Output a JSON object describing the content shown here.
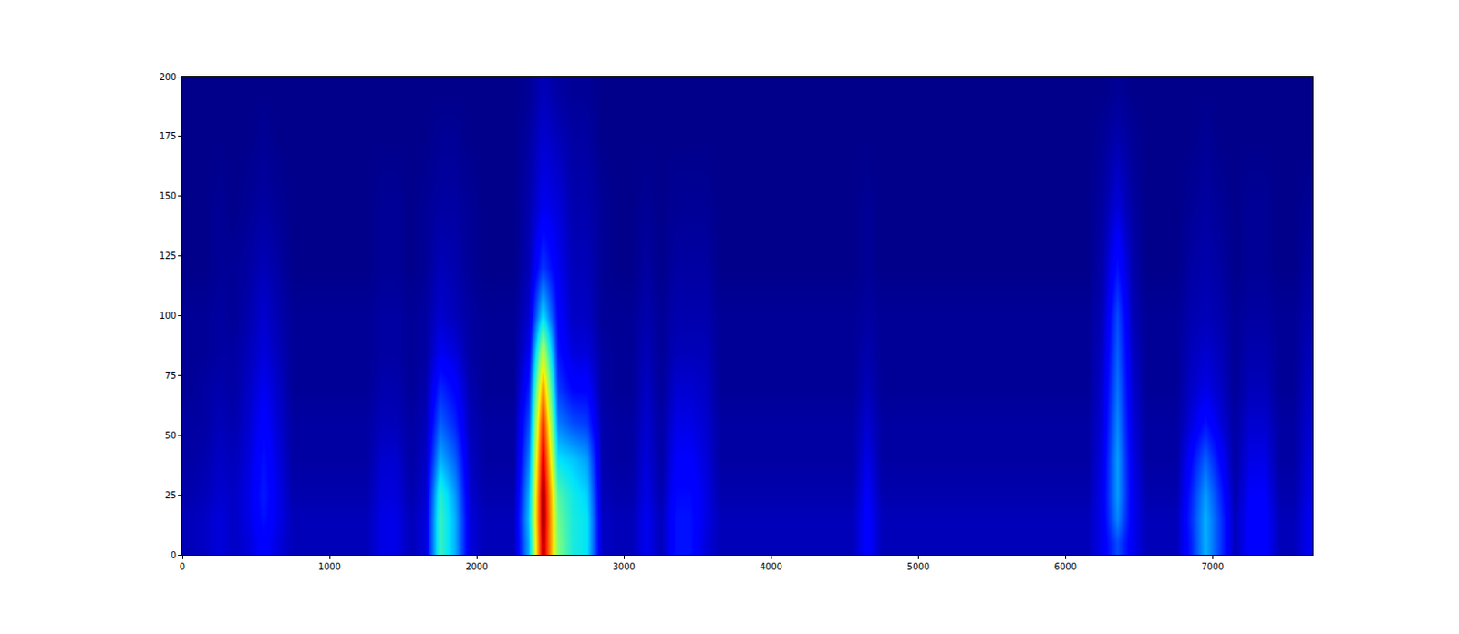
{
  "chart_data": {
    "type": "heatmap",
    "x": [
      50,
      150,
      250,
      350,
      450,
      550,
      650,
      750,
      850,
      950,
      1050,
      1150,
      1250,
      1350,
      1450,
      1550,
      1650,
      1750,
      1850,
      1950,
      2050,
      2150,
      2250,
      2350,
      2450,
      2550,
      2650,
      2750,
      2850,
      2950,
      3050,
      3150,
      3250,
      3350,
      3450,
      3550,
      3650,
      3750,
      3850,
      3950,
      4050,
      4150,
      4250,
      4350,
      4450,
      4550,
      4650,
      4750,
      4850,
      4950,
      5050,
      5150,
      5250,
      5350,
      5450,
      5550,
      5650,
      5750,
      5850,
      5950,
      6050,
      6150,
      6250,
      6350,
      6450,
      6550,
      6650,
      6750,
      6850,
      6950,
      7050,
      7150,
      7250,
      7350,
      7450,
      7550,
      7650
    ],
    "y": [
      5,
      15,
      25,
      40,
      55,
      70,
      85,
      100,
      120,
      145,
      175,
      195
    ],
    "z": [
      [
        0.05,
        0.05,
        0.04,
        0.03,
        0.03,
        0.02,
        0.02,
        0.02,
        0.01,
        0.01,
        0.01,
        0.01
      ],
      [
        0.06,
        0.06,
        0.05,
        0.04,
        0.03,
        0.03,
        0.02,
        0.02,
        0.01,
        0.01,
        0.01,
        0.01
      ],
      [
        0.08,
        0.08,
        0.07,
        0.06,
        0.05,
        0.04,
        0.03,
        0.03,
        0.02,
        0.02,
        0.01,
        0.01
      ],
      [
        0.06,
        0.06,
        0.06,
        0.05,
        0.04,
        0.03,
        0.03,
        0.02,
        0.02,
        0.01,
        0.01,
        0.01
      ],
      [
        0.08,
        0.09,
        0.09,
        0.08,
        0.07,
        0.06,
        0.05,
        0.04,
        0.03,
        0.02,
        0.01,
        0.01
      ],
      [
        0.12,
        0.14,
        0.15,
        0.14,
        0.12,
        0.1,
        0.08,
        0.07,
        0.05,
        0.03,
        0.02,
        0.01
      ],
      [
        0.08,
        0.09,
        0.09,
        0.08,
        0.07,
        0.06,
        0.05,
        0.04,
        0.03,
        0.02,
        0.01,
        0.01
      ],
      [
        0.05,
        0.05,
        0.04,
        0.03,
        0.03,
        0.02,
        0.02,
        0.02,
        0.01,
        0.01,
        0.01,
        0.01
      ],
      [
        0.05,
        0.05,
        0.04,
        0.03,
        0.03,
        0.02,
        0.02,
        0.02,
        0.01,
        0.01,
        0.01,
        0.01
      ],
      [
        0.05,
        0.05,
        0.04,
        0.03,
        0.03,
        0.02,
        0.02,
        0.02,
        0.01,
        0.01,
        0.01,
        0.01
      ],
      [
        0.05,
        0.05,
        0.04,
        0.03,
        0.03,
        0.02,
        0.02,
        0.02,
        0.01,
        0.01,
        0.01,
        0.01
      ],
      [
        0.05,
        0.05,
        0.04,
        0.03,
        0.03,
        0.02,
        0.02,
        0.02,
        0.01,
        0.01,
        0.01,
        0.01
      ],
      [
        0.05,
        0.05,
        0.04,
        0.03,
        0.03,
        0.02,
        0.02,
        0.02,
        0.01,
        0.01,
        0.01,
        0.01
      ],
      [
        0.09,
        0.09,
        0.08,
        0.07,
        0.05,
        0.04,
        0.03,
        0.03,
        0.02,
        0.02,
        0.01,
        0.01
      ],
      [
        0.09,
        0.09,
        0.08,
        0.07,
        0.05,
        0.04,
        0.03,
        0.03,
        0.02,
        0.02,
        0.01,
        0.01
      ],
      [
        0.05,
        0.05,
        0.04,
        0.03,
        0.03,
        0.02,
        0.02,
        0.02,
        0.01,
        0.01,
        0.01,
        0.01
      ],
      [
        0.08,
        0.08,
        0.07,
        0.06,
        0.05,
        0.04,
        0.03,
        0.03,
        0.02,
        0.02,
        0.01,
        0.01
      ],
      [
        0.42,
        0.42,
        0.4,
        0.3,
        0.22,
        0.16,
        0.1,
        0.07,
        0.05,
        0.03,
        0.02,
        0.01
      ],
      [
        0.3,
        0.3,
        0.28,
        0.22,
        0.16,
        0.12,
        0.08,
        0.05,
        0.04,
        0.03,
        0.02,
        0.01
      ],
      [
        0.08,
        0.08,
        0.07,
        0.06,
        0.05,
        0.04,
        0.03,
        0.03,
        0.02,
        0.02,
        0.01,
        0.01
      ],
      [
        0.05,
        0.05,
        0.04,
        0.03,
        0.03,
        0.02,
        0.02,
        0.02,
        0.01,
        0.01,
        0.01,
        0.01
      ],
      [
        0.05,
        0.05,
        0.04,
        0.03,
        0.03,
        0.02,
        0.02,
        0.02,
        0.01,
        0.01,
        0.01,
        0.01
      ],
      [
        0.05,
        0.05,
        0.04,
        0.03,
        0.03,
        0.02,
        0.02,
        0.02,
        0.01,
        0.01,
        0.01,
        0.01
      ],
      [
        0.3,
        0.32,
        0.3,
        0.25,
        0.2,
        0.15,
        0.1,
        0.07,
        0.05,
        0.04,
        0.03,
        0.02
      ],
      [
        0.98,
        1.0,
        1.0,
        0.95,
        0.88,
        0.75,
        0.58,
        0.35,
        0.18,
        0.1,
        0.07,
        0.05
      ],
      [
        0.5,
        0.48,
        0.45,
        0.35,
        0.25,
        0.18,
        0.14,
        0.12,
        0.1,
        0.08,
        0.05,
        0.03
      ],
      [
        0.38,
        0.38,
        0.37,
        0.32,
        0.2,
        0.12,
        0.08,
        0.06,
        0.05,
        0.04,
        0.03,
        0.02
      ],
      [
        0.35,
        0.35,
        0.33,
        0.28,
        0.18,
        0.12,
        0.08,
        0.06,
        0.05,
        0.04,
        0.03,
        0.02
      ],
      [
        0.06,
        0.06,
        0.05,
        0.04,
        0.04,
        0.03,
        0.03,
        0.02,
        0.02,
        0.02,
        0.01,
        0.01
      ],
      [
        0.05,
        0.05,
        0.04,
        0.03,
        0.03,
        0.02,
        0.02,
        0.02,
        0.01,
        0.01,
        0.01,
        0.01
      ],
      [
        0.05,
        0.05,
        0.04,
        0.03,
        0.03,
        0.02,
        0.02,
        0.02,
        0.01,
        0.01,
        0.01,
        0.01
      ],
      [
        0.1,
        0.1,
        0.09,
        0.08,
        0.07,
        0.06,
        0.05,
        0.04,
        0.03,
        0.02,
        0.01,
        0.01
      ],
      [
        0.05,
        0.05,
        0.04,
        0.03,
        0.03,
        0.02,
        0.02,
        0.02,
        0.01,
        0.01,
        0.01,
        0.01
      ],
      [
        0.14,
        0.14,
        0.13,
        0.11,
        0.09,
        0.07,
        0.05,
        0.04,
        0.03,
        0.02,
        0.01,
        0.01
      ],
      [
        0.14,
        0.14,
        0.13,
        0.11,
        0.09,
        0.07,
        0.05,
        0.04,
        0.03,
        0.02,
        0.01,
        0.01
      ],
      [
        0.08,
        0.09,
        0.09,
        0.08,
        0.07,
        0.06,
        0.05,
        0.04,
        0.03,
        0.02,
        0.01,
        0.01
      ],
      [
        0.05,
        0.05,
        0.04,
        0.03,
        0.03,
        0.02,
        0.02,
        0.02,
        0.01,
        0.01,
        0.01,
        0.01
      ],
      [
        0.05,
        0.05,
        0.04,
        0.03,
        0.03,
        0.02,
        0.02,
        0.02,
        0.01,
        0.01,
        0.01,
        0.01
      ],
      [
        0.05,
        0.05,
        0.04,
        0.03,
        0.03,
        0.02,
        0.02,
        0.02,
        0.01,
        0.01,
        0.01,
        0.01
      ],
      [
        0.05,
        0.05,
        0.04,
        0.03,
        0.03,
        0.02,
        0.02,
        0.02,
        0.01,
        0.01,
        0.01,
        0.01
      ],
      [
        0.05,
        0.05,
        0.04,
        0.03,
        0.03,
        0.02,
        0.02,
        0.02,
        0.01,
        0.01,
        0.01,
        0.01
      ],
      [
        0.05,
        0.05,
        0.04,
        0.03,
        0.03,
        0.02,
        0.02,
        0.02,
        0.01,
        0.01,
        0.01,
        0.01
      ],
      [
        0.05,
        0.05,
        0.04,
        0.03,
        0.03,
        0.02,
        0.02,
        0.02,
        0.01,
        0.01,
        0.01,
        0.01
      ],
      [
        0.05,
        0.05,
        0.04,
        0.03,
        0.03,
        0.02,
        0.02,
        0.02,
        0.01,
        0.01,
        0.01,
        0.01
      ],
      [
        0.05,
        0.05,
        0.04,
        0.03,
        0.03,
        0.02,
        0.02,
        0.02,
        0.01,
        0.01,
        0.01,
        0.01
      ],
      [
        0.05,
        0.05,
        0.04,
        0.03,
        0.03,
        0.02,
        0.02,
        0.02,
        0.01,
        0.01,
        0.01,
        0.01
      ],
      [
        0.12,
        0.12,
        0.11,
        0.09,
        0.07,
        0.05,
        0.04,
        0.03,
        0.02,
        0.02,
        0.01,
        0.01
      ],
      [
        0.05,
        0.05,
        0.04,
        0.03,
        0.03,
        0.02,
        0.02,
        0.02,
        0.01,
        0.01,
        0.01,
        0.01
      ],
      [
        0.05,
        0.05,
        0.04,
        0.03,
        0.03,
        0.02,
        0.02,
        0.02,
        0.01,
        0.01,
        0.01,
        0.01
      ],
      [
        0.05,
        0.05,
        0.04,
        0.03,
        0.03,
        0.02,
        0.02,
        0.02,
        0.01,
        0.01,
        0.01,
        0.01
      ],
      [
        0.05,
        0.05,
        0.04,
        0.03,
        0.03,
        0.02,
        0.02,
        0.02,
        0.01,
        0.01,
        0.01,
        0.01
      ],
      [
        0.05,
        0.05,
        0.04,
        0.03,
        0.03,
        0.02,
        0.02,
        0.02,
        0.01,
        0.01,
        0.01,
        0.01
      ],
      [
        0.05,
        0.05,
        0.04,
        0.03,
        0.03,
        0.02,
        0.02,
        0.02,
        0.01,
        0.01,
        0.01,
        0.01
      ],
      [
        0.05,
        0.05,
        0.04,
        0.03,
        0.03,
        0.02,
        0.02,
        0.02,
        0.01,
        0.01,
        0.01,
        0.01
      ],
      [
        0.05,
        0.05,
        0.04,
        0.03,
        0.03,
        0.02,
        0.02,
        0.02,
        0.01,
        0.01,
        0.01,
        0.01
      ],
      [
        0.05,
        0.05,
        0.04,
        0.03,
        0.03,
        0.02,
        0.02,
        0.02,
        0.01,
        0.01,
        0.01,
        0.01
      ],
      [
        0.05,
        0.05,
        0.04,
        0.03,
        0.03,
        0.02,
        0.02,
        0.02,
        0.01,
        0.01,
        0.01,
        0.01
      ],
      [
        0.05,
        0.05,
        0.04,
        0.03,
        0.03,
        0.02,
        0.02,
        0.02,
        0.01,
        0.01,
        0.01,
        0.01
      ],
      [
        0.05,
        0.05,
        0.04,
        0.03,
        0.03,
        0.02,
        0.02,
        0.02,
        0.01,
        0.01,
        0.01,
        0.01
      ],
      [
        0.05,
        0.05,
        0.04,
        0.03,
        0.03,
        0.02,
        0.02,
        0.02,
        0.01,
        0.01,
        0.01,
        0.01
      ],
      [
        0.05,
        0.05,
        0.04,
        0.03,
        0.03,
        0.02,
        0.02,
        0.02,
        0.01,
        0.01,
        0.01,
        0.01
      ],
      [
        0.05,
        0.05,
        0.04,
        0.03,
        0.03,
        0.02,
        0.02,
        0.02,
        0.01,
        0.01,
        0.01,
        0.01
      ],
      [
        0.1,
        0.1,
        0.1,
        0.09,
        0.08,
        0.07,
        0.06,
        0.05,
        0.04,
        0.03,
        0.02,
        0.01
      ],
      [
        0.2,
        0.26,
        0.28,
        0.28,
        0.26,
        0.24,
        0.22,
        0.2,
        0.14,
        0.08,
        0.04,
        0.02
      ],
      [
        0.1,
        0.1,
        0.1,
        0.09,
        0.08,
        0.07,
        0.06,
        0.05,
        0.04,
        0.03,
        0.02,
        0.01
      ],
      [
        0.05,
        0.05,
        0.04,
        0.03,
        0.03,
        0.02,
        0.02,
        0.02,
        0.01,
        0.01,
        0.01,
        0.01
      ],
      [
        0.05,
        0.05,
        0.04,
        0.03,
        0.03,
        0.02,
        0.02,
        0.02,
        0.01,
        0.01,
        0.01,
        0.01
      ],
      [
        0.05,
        0.05,
        0.04,
        0.03,
        0.03,
        0.02,
        0.02,
        0.02,
        0.01,
        0.01,
        0.01,
        0.01
      ],
      [
        0.15,
        0.16,
        0.15,
        0.12,
        0.08,
        0.06,
        0.05,
        0.04,
        0.03,
        0.02,
        0.01,
        0.01
      ],
      [
        0.3,
        0.3,
        0.28,
        0.22,
        0.14,
        0.09,
        0.07,
        0.05,
        0.04,
        0.03,
        0.02,
        0.01
      ],
      [
        0.18,
        0.18,
        0.16,
        0.12,
        0.08,
        0.06,
        0.05,
        0.04,
        0.03,
        0.02,
        0.01,
        0.01
      ],
      [
        0.05,
        0.05,
        0.04,
        0.03,
        0.03,
        0.02,
        0.02,
        0.02,
        0.01,
        0.01,
        0.01,
        0.01
      ],
      [
        0.12,
        0.12,
        0.11,
        0.09,
        0.07,
        0.05,
        0.04,
        0.03,
        0.02,
        0.02,
        0.01,
        0.01
      ],
      [
        0.12,
        0.12,
        0.11,
        0.09,
        0.07,
        0.05,
        0.04,
        0.03,
        0.02,
        0.02,
        0.01,
        0.01
      ],
      [
        0.05,
        0.05,
        0.04,
        0.03,
        0.03,
        0.02,
        0.02,
        0.02,
        0.01,
        0.01,
        0.01,
        0.01
      ],
      [
        0.05,
        0.05,
        0.04,
        0.03,
        0.03,
        0.02,
        0.02,
        0.02,
        0.01,
        0.01,
        0.01,
        0.01
      ],
      [
        0.1,
        0.1,
        0.09,
        0.08,
        0.07,
        0.06,
        0.05,
        0.04,
        0.03,
        0.02,
        0.01,
        0.01
      ]
    ],
    "zlim": [
      0,
      1
    ],
    "xlim": [
      0,
      7680
    ],
    "xticks": [
      0,
      1000,
      2000,
      3000,
      4000,
      5000,
      6000,
      7000
    ],
    "ylim": [
      0,
      200
    ],
    "yticks": [
      0,
      25,
      50,
      75,
      100,
      125,
      150,
      175,
      200
    ],
    "grid": false
  }
}
